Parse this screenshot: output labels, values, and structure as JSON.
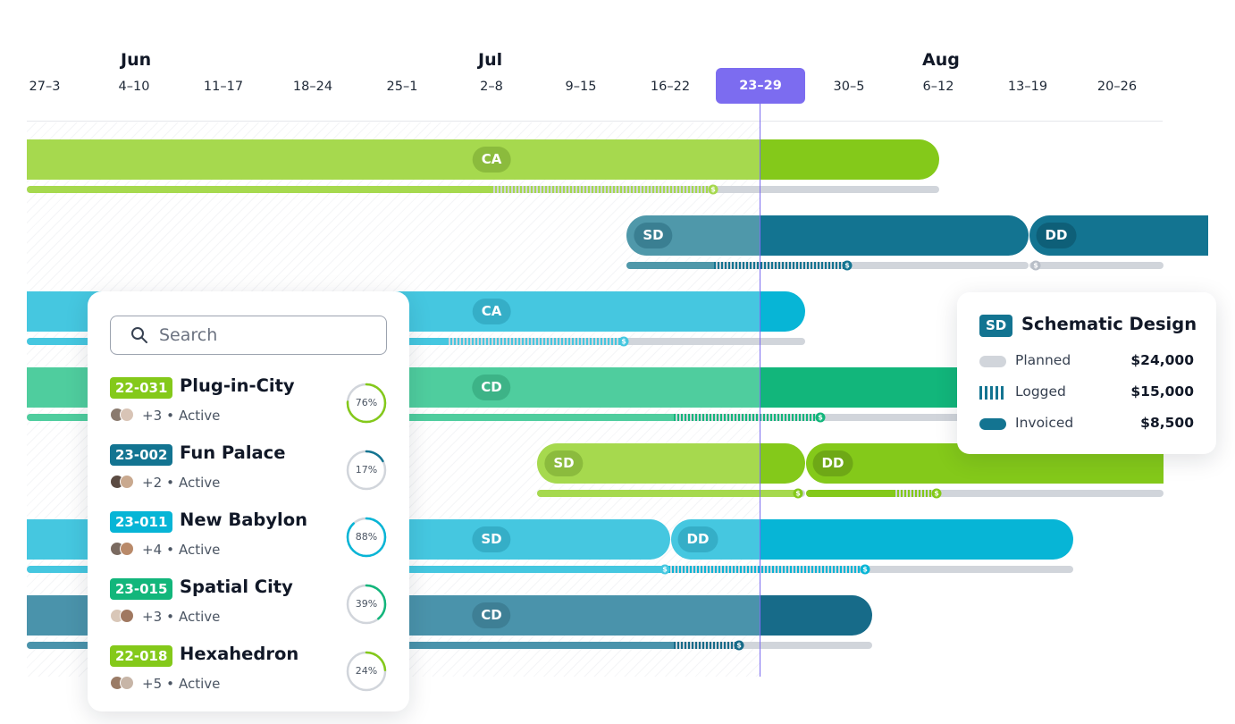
{
  "timeline": {
    "months": [
      "Jun",
      "Jul",
      "Aug"
    ],
    "weeks": [
      "27–3",
      "4–10",
      "11–17",
      "18–24",
      "25–1",
      "2–8",
      "9–15",
      "16–22",
      "23–29",
      "30–5",
      "6–12",
      "13–19",
      "20–26"
    ],
    "current_week": "23–29"
  },
  "colors": {
    "lime": "#a6d94e",
    "lime_dark": "#84c91a",
    "teal": "#4f98aa",
    "teal_dark": "#137491",
    "cyan": "#45c7e0",
    "cyan_dark": "#07b5d6",
    "green": "#4fcd9e",
    "green_dark": "#12b67b",
    "navy": "#4a93ab",
    "navy_dark": "#176b89",
    "planned": "#d1d5db",
    "accent": "#7c6cf0"
  },
  "rows": [
    {
      "phases": [
        "CA"
      ]
    },
    {
      "phases": [
        "SD",
        "DD"
      ]
    },
    {
      "phases": [
        "CA"
      ]
    },
    {
      "phases": [
        "CD"
      ]
    },
    {
      "phases": [
        "SD",
        "DD"
      ]
    },
    {
      "phases": [
        "SD",
        "DD"
      ]
    },
    {
      "phases": [
        "CD"
      ]
    }
  ],
  "search": {
    "placeholder": "Search"
  },
  "projects": [
    {
      "code": "22-031",
      "name": "Plug-in-City",
      "extra": "+3",
      "status": "Active",
      "progress": "76%",
      "progress_value": 76,
      "color": "#84c91a"
    },
    {
      "code": "23-002",
      "name": "Fun Palace",
      "extra": "+2",
      "status": "Active",
      "progress": "17%",
      "progress_value": 17,
      "color": "#137491"
    },
    {
      "code": "23-011",
      "name": "New Babylon",
      "extra": "+4",
      "status": "Active",
      "progress": "88%",
      "progress_value": 88,
      "color": "#07b5d6"
    },
    {
      "code": "23-015",
      "name": "Spatial City",
      "extra": "+3",
      "status": "Active",
      "progress": "39%",
      "progress_value": 39,
      "color": "#12b67b"
    },
    {
      "code": "22-018",
      "name": "Hexahedron",
      "extra": "+5",
      "status": "Active",
      "progress": "24%",
      "progress_value": 24,
      "color": "#84c91a"
    }
  ],
  "legend": {
    "code": "SD",
    "title": "Schematic Design",
    "items": [
      {
        "label": "Planned",
        "amount": "$24,000"
      },
      {
        "label": "Logged",
        "amount": "$15,000"
      },
      {
        "label": "Invoiced",
        "amount": "$8,500"
      }
    ]
  },
  "icons": {
    "search": "search-icon",
    "dollar": "$"
  }
}
